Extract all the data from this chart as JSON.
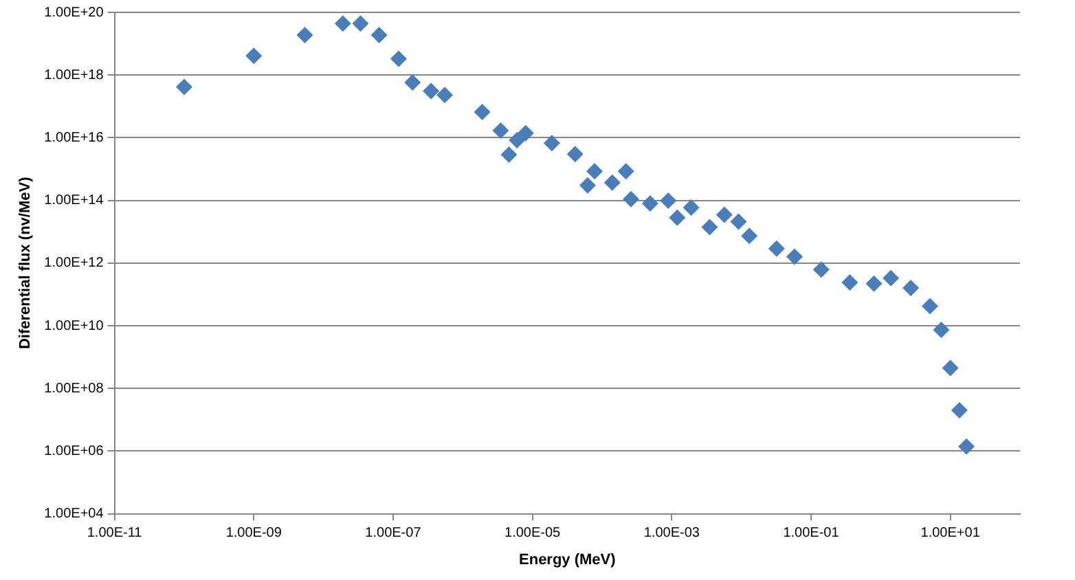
{
  "chart_data": {
    "type": "scatter",
    "xlabel": "Energy (MeV)",
    "ylabel": "Diferential flux (nv/MeV)",
    "log": "xy",
    "grid": "y",
    "legend": false,
    "marker": "diamond",
    "xlim": [
      1e-11,
      100
    ],
    "xticks": [
      {
        "value": 1e-11,
        "label": "1.00E-11"
      },
      {
        "value": 1e-09,
        "label": "1.00E-09"
      },
      {
        "value": 1e-07,
        "label": "1.00E-07"
      },
      {
        "value": 1e-05,
        "label": "1.00E-05"
      },
      {
        "value": 0.001,
        "label": "1.00E-03"
      },
      {
        "value": 0.1,
        "label": "1.00E-01"
      },
      {
        "value": 10,
        "label": "1.00E+01"
      }
    ],
    "ylim": [
      10000.0,
      1e+20
    ],
    "yticks": [
      {
        "value": 10000.0,
        "label": "1.00E+04"
      },
      {
        "value": 1000000.0,
        "label": "1.00E+06"
      },
      {
        "value": 100000000.0,
        "label": "1.00E+08"
      },
      {
        "value": 10000000000.0,
        "label": "1.00E+10"
      },
      {
        "value": 1000000000000.0,
        "label": "1.00E+12"
      },
      {
        "value": 100000000000000.0,
        "label": "1.00E+14"
      },
      {
        "value": 1e+16,
        "label": "1.00E+16"
      },
      {
        "value": 1e+18,
        "label": "1.00E+18"
      },
      {
        "value": 1e+20,
        "label": "1.00E+20"
      }
    ],
    "x": [
      1e-10,
      1e-09,
      5.4e-09,
      1.9e-08,
      3.4e-08,
      6.3e-08,
      1.2e-07,
      1.9e-07,
      3.5e-07,
      5.5e-07,
      1.9e-06,
      3.5e-06,
      4.6e-06,
      6e-06,
      8e-06,
      1.9e-05,
      4.1e-05,
      6.2e-05,
      7.8e-05,
      0.00014,
      0.00022,
      0.00026,
      0.00049,
      0.00089,
      0.0012,
      0.0019,
      0.0035,
      0.0057,
      0.0091,
      0.013,
      0.032,
      0.058,
      0.14,
      0.36,
      0.8,
      1.4,
      2.7,
      5.1,
      7.4,
      10,
      13.5,
      17
    ],
    "series": [
      {
        "color": "#4a7ebb",
        "values": [
          4.2e+17,
          4.1e+18,
          1.9e+19,
          4.4e+19,
          4.4e+19,
          1.9e+19,
          3.3e+18,
          5.8e+17,
          3.1e+17,
          2.3e+17,
          6.6e+16,
          1.7e+16,
          2900000000000000.0,
          8300000000000000.0,
          1.4e+16,
          6700000000000000.0,
          3000000000000000.0,
          300000000000000.0,
          850000000000000.0,
          370000000000000.0,
          850000000000000.0,
          110000000000000.0,
          80000000000000.0,
          98000000000000.0,
          28000000000000.0,
          59000000000000.0,
          14000000000000.0,
          35000000000000.0,
          21000000000000.0,
          7400000000000.0,
          2900000000000.0,
          1600000000000.0,
          620000000000.0,
          240000000000.0,
          220000000000.0,
          330000000000.0,
          160000000000.0,
          42000000000.0,
          7400000000.0,
          450000000.0,
          20000000.0,
          1400000.0
        ]
      }
    ]
  }
}
